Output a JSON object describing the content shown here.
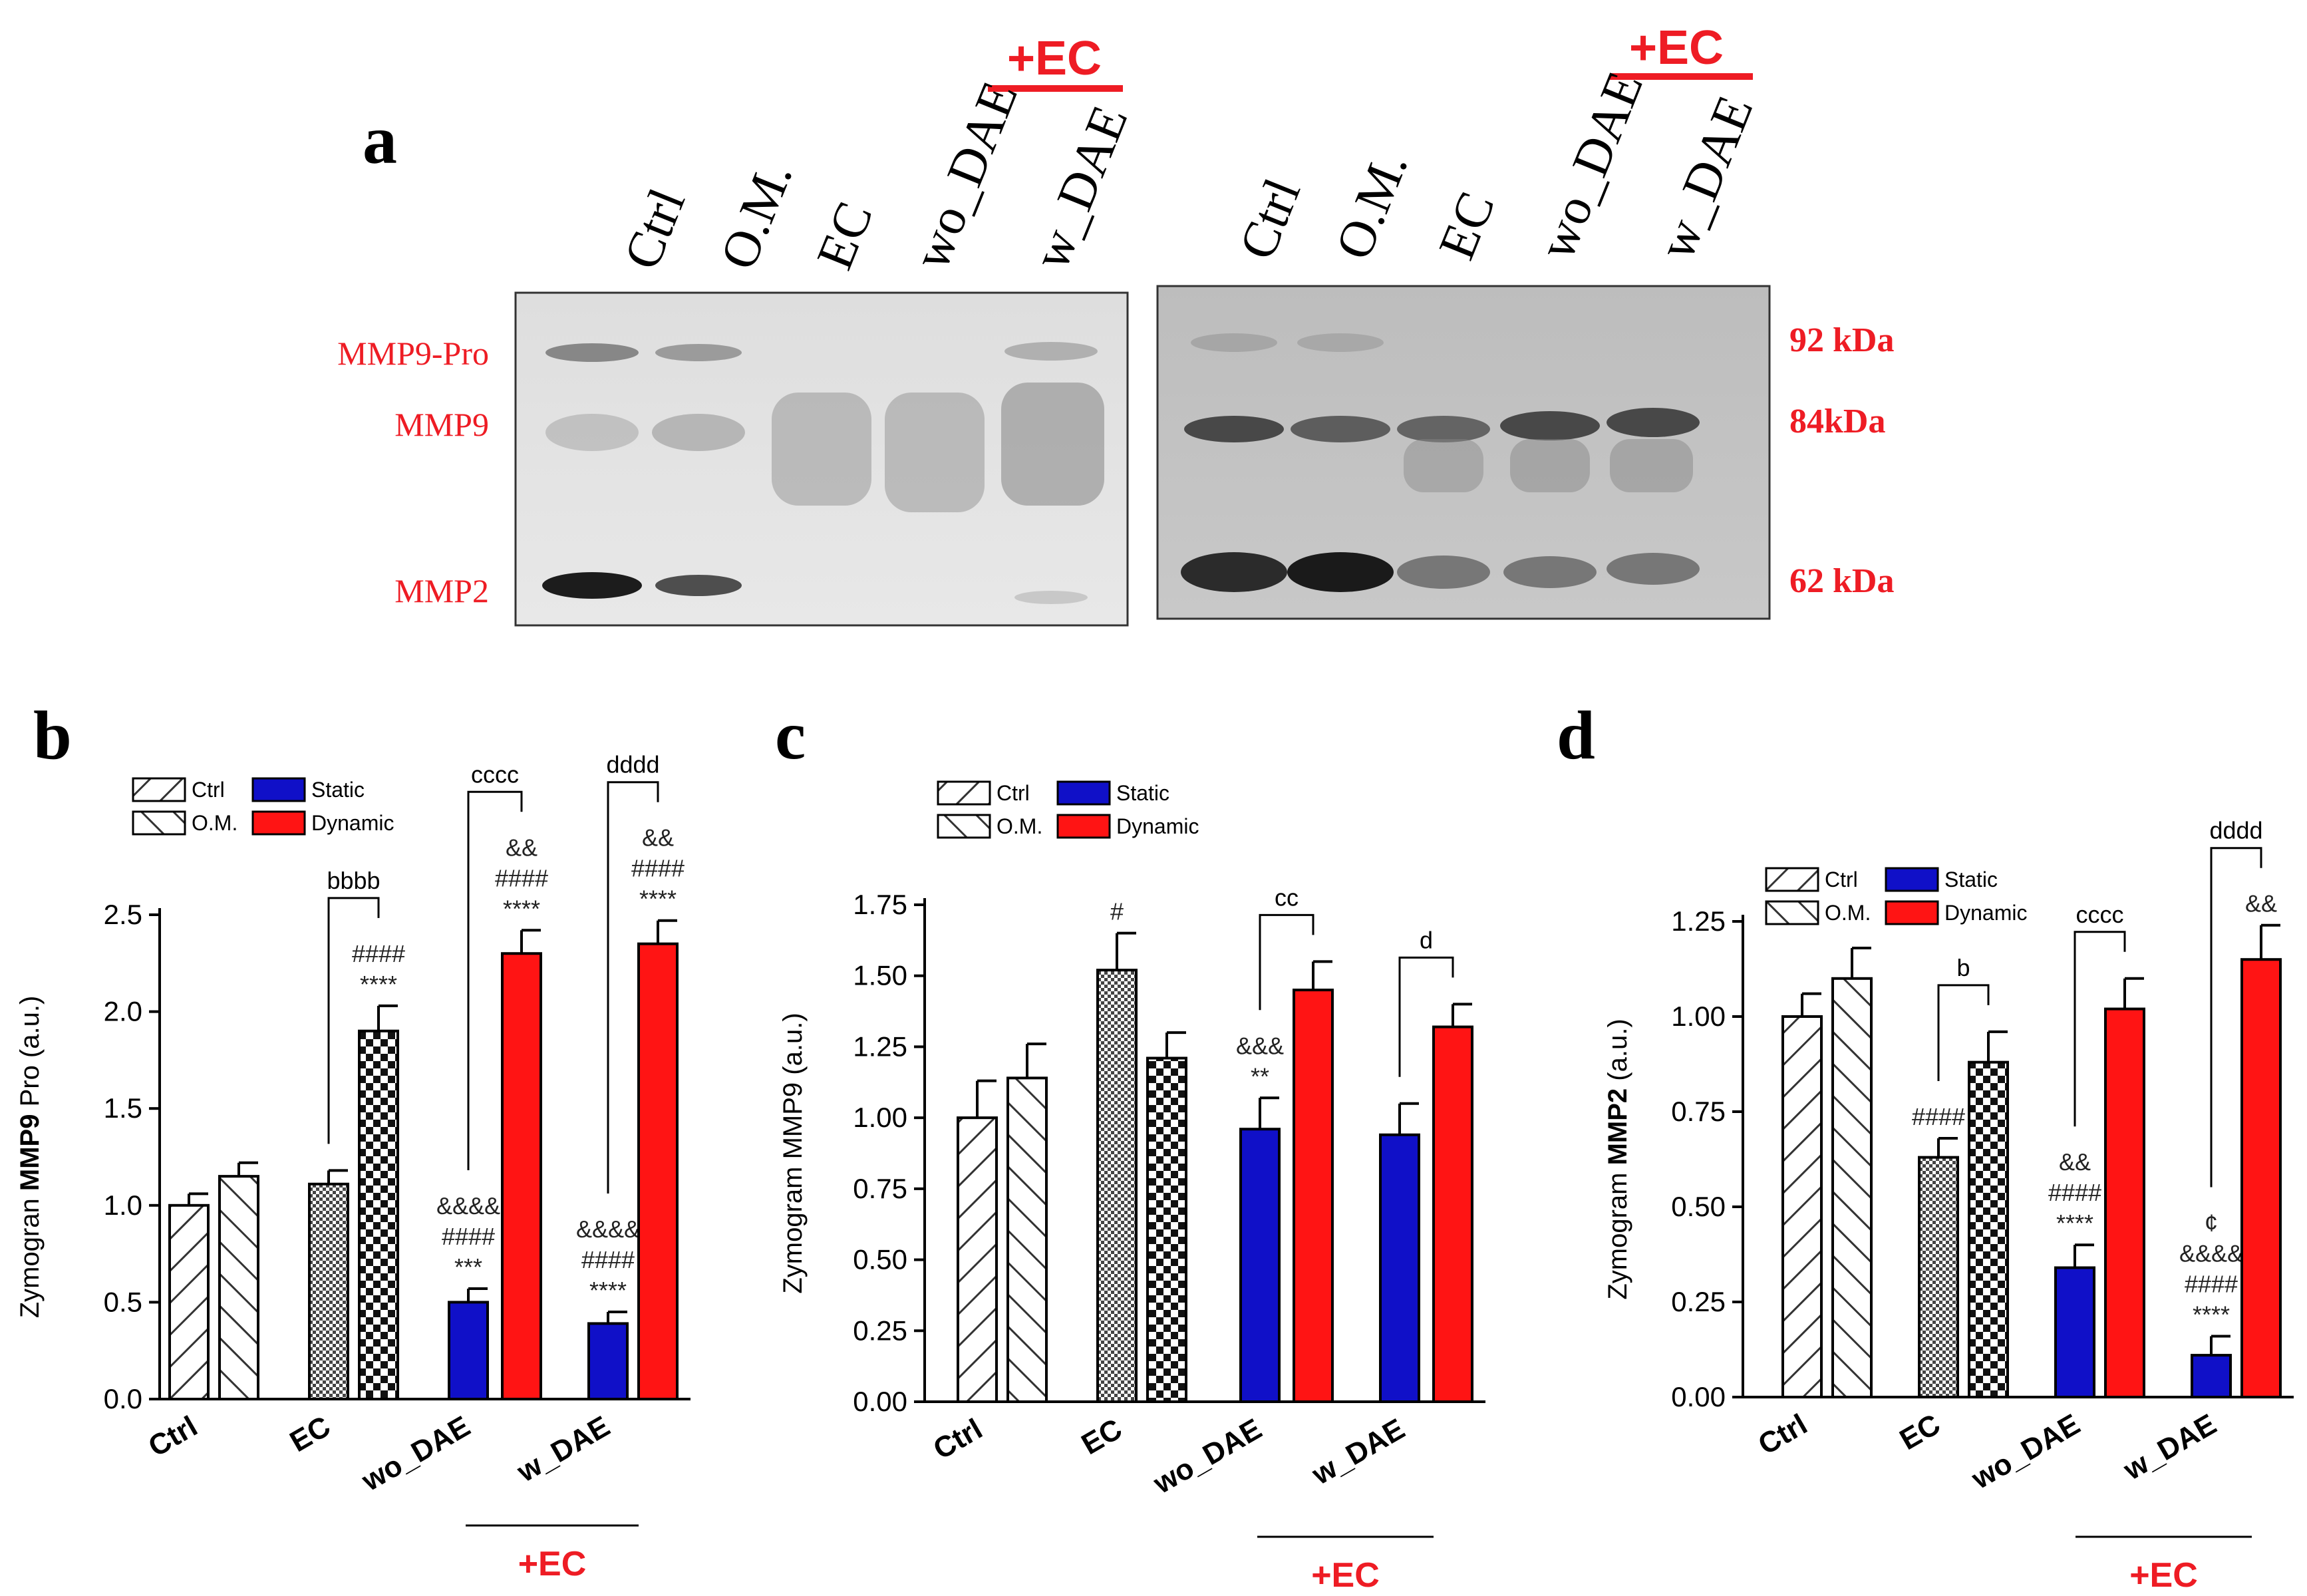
{
  "panel_labels": {
    "a": "a",
    "b": "b",
    "c": "c",
    "d": "d"
  },
  "gel": {
    "lanes": [
      "Ctrl",
      "O.M.",
      "EC",
      "wo_DAE",
      "w_DAE"
    ],
    "ec_label": "+EC",
    "band_labels": [
      "MMP9-Pro",
      "MMP9",
      "MMP2"
    ],
    "mw_labels": [
      "92 kDa",
      "84kDa",
      "62 kDa"
    ],
    "colors": {
      "red": "#ee1c24"
    }
  },
  "legend": {
    "ctrl": "Ctrl",
    "om": "O.M.",
    "static": "Static",
    "dynamic": "Dynamic"
  },
  "colors": {
    "static": "#1010c8",
    "dynamic": "#ff1414",
    "ec_label": "#ee1c24"
  },
  "chart_data": [
    {
      "type": "bar",
      "panel": "b",
      "ylabel_prefix": "Zymogran ",
      "ylabel_bold": "MMP9",
      "ylabel_suffix": " Pro (a.u.)",
      "ylim": [
        0,
        2.5
      ],
      "yticks": [
        "0.0",
        "0.5",
        "1.0",
        "1.5",
        "2.0",
        "2.5"
      ],
      "groups": [
        "Ctrl",
        "EC",
        "wo_DAE",
        "w_DAE"
      ],
      "ec_label": "+EC",
      "bars": [
        {
          "group": "Ctrl",
          "fill": "hatch-ctrl",
          "value": 1.0,
          "error": 0.06
        },
        {
          "group": "Ctrl",
          "fill": "hatch-om",
          "value": 1.15,
          "error": 0.07
        },
        {
          "group": "EC",
          "fill": "dots",
          "value": 1.11,
          "error": 0.07
        },
        {
          "group": "EC",
          "fill": "checker",
          "value": 1.9,
          "error": 0.13,
          "annotations": [
            "####",
            "****"
          ]
        },
        {
          "group": "wo_DAE",
          "fill": "static",
          "value": 0.5,
          "error": 0.07,
          "annotations": [
            "&&&&",
            "####",
            "***"
          ]
        },
        {
          "group": "wo_DAE",
          "fill": "dynamic",
          "value": 2.3,
          "error": 0.12,
          "annotations": [
            "&&",
            "####",
            "****"
          ]
        },
        {
          "group": "w_DAE",
          "fill": "static",
          "value": 0.39,
          "error": 0.06,
          "annotations": [
            "&&&&",
            "####",
            "****"
          ]
        },
        {
          "group": "w_DAE",
          "fill": "dynamic",
          "value": 2.35,
          "error": 0.12,
          "annotations": [
            "&&",
            "####",
            "****"
          ]
        }
      ],
      "brackets": [
        {
          "from": 2,
          "to": 3,
          "label": "bbbb"
        },
        {
          "from": 4,
          "to": 5,
          "label": "cccc"
        },
        {
          "from": 6,
          "to": 7,
          "label": "dddd"
        }
      ]
    },
    {
      "type": "bar",
      "panel": "c",
      "ylabel_prefix": "Zymogram MMP9 (a.u.)",
      "ylabel_bold": "",
      "ylabel_suffix": "",
      "ylim": [
        0,
        1.75
      ],
      "yticks": [
        "0.00",
        "0.25",
        "0.50",
        "0.75",
        "1.00",
        "1.25",
        "1.50",
        "1.75"
      ],
      "groups": [
        "Ctrl",
        "EC",
        "wo_DAE",
        "w_DAE"
      ],
      "ec_label": "+EC",
      "bars": [
        {
          "group": "Ctrl",
          "fill": "hatch-ctrl",
          "value": 1.0,
          "error": 0.13
        },
        {
          "group": "Ctrl",
          "fill": "hatch-om",
          "value": 1.14,
          "error": 0.12
        },
        {
          "group": "EC",
          "fill": "dots",
          "value": 1.52,
          "error": 0.13,
          "annotations": [
            "#"
          ]
        },
        {
          "group": "EC",
          "fill": "checker",
          "value": 1.21,
          "error": 0.09
        },
        {
          "group": "wo_DAE",
          "fill": "static",
          "value": 0.96,
          "error": 0.11,
          "annotations": [
            "&&&",
            "**"
          ]
        },
        {
          "group": "wo_DAE",
          "fill": "dynamic",
          "value": 1.45,
          "error": 0.1
        },
        {
          "group": "w_DAE",
          "fill": "static",
          "value": 0.94,
          "error": 0.11
        },
        {
          "group": "w_DAE",
          "fill": "dynamic",
          "value": 1.32,
          "error": 0.08
        }
      ],
      "brackets": [
        {
          "from": 4,
          "to": 5,
          "label": "cc"
        },
        {
          "from": 6,
          "to": 7,
          "label": "d"
        }
      ]
    },
    {
      "type": "bar",
      "panel": "d",
      "ylabel_prefix": "Zymogram ",
      "ylabel_bold": "MMP2",
      "ylabel_suffix": " (a.u.)",
      "ylim": [
        0,
        1.25
      ],
      "yticks": [
        "0.00",
        "0.25",
        "0.50",
        "0.75",
        "1.00",
        "1.25"
      ],
      "groups": [
        "Ctrl",
        "EC",
        "wo_DAE",
        "w_DAE"
      ],
      "ec_label": "+EC",
      "bars": [
        {
          "group": "Ctrl",
          "fill": "hatch-ctrl",
          "value": 1.0,
          "error": 0.06
        },
        {
          "group": "Ctrl",
          "fill": "hatch-om",
          "value": 1.1,
          "error": 0.08
        },
        {
          "group": "EC",
          "fill": "dots",
          "value": 0.63,
          "error": 0.05,
          "annotations": [
            "####"
          ]
        },
        {
          "group": "EC",
          "fill": "checker",
          "value": 0.88,
          "error": 0.08
        },
        {
          "group": "wo_DAE",
          "fill": "static",
          "value": 0.34,
          "error": 0.06,
          "annotations": [
            "&&",
            "####",
            "****"
          ]
        },
        {
          "group": "wo_DAE",
          "fill": "dynamic",
          "value": 1.02,
          "error": 0.08
        },
        {
          "group": "w_DAE",
          "fill": "static",
          "value": 0.11,
          "error": 0.05,
          "annotations": [
            "¢",
            "&&&&",
            "####",
            "****"
          ]
        },
        {
          "group": "w_DAE",
          "fill": "dynamic",
          "value": 1.15,
          "error": 0.09,
          "annotations": [
            "&&"
          ]
        }
      ],
      "brackets": [
        {
          "from": 2,
          "to": 3,
          "label": "b"
        },
        {
          "from": 4,
          "to": 5,
          "label": "cccc"
        },
        {
          "from": 6,
          "to": 7,
          "label": "dddd"
        }
      ]
    }
  ]
}
